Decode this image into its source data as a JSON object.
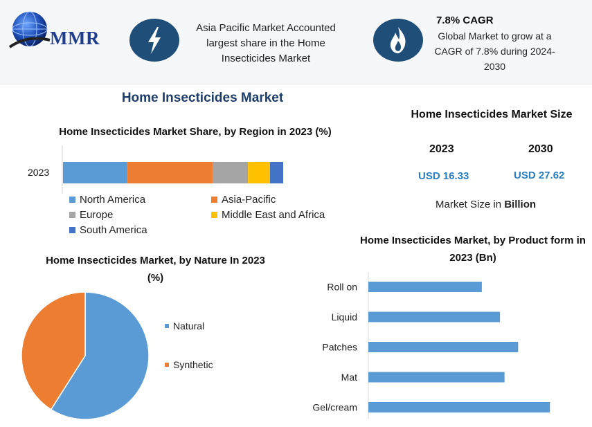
{
  "brand": {
    "logo_text": "MMR"
  },
  "header": {
    "highlight1_text": "Asia Pacific Market Accounted largest share in the Home Insecticides Market",
    "cagr_title": "7.8% CAGR",
    "cagr_text": "Global Market to grow at a CAGR of 7.8% during 2024-2030"
  },
  "main_title": "Home Insecticides Market",
  "market_size": {
    "title": "Home Insecticides Market Size",
    "year1": "2023",
    "year2": "2030",
    "value1": "USD 16.33",
    "value2": "USD 27.62",
    "note_prefix": "Market Size in ",
    "note_bold": "Billion"
  },
  "chart_data": [
    {
      "type": "bar",
      "orientation": "horizontal-stacked",
      "title": "Home Insecticides Market Share, by Region in 2023 (%)",
      "categories": [
        "2023"
      ],
      "series": [
        {
          "name": "North America",
          "values": [
            29
          ],
          "color": "#5b9bd5"
        },
        {
          "name": "Asia-Pacific",
          "values": [
            39
          ],
          "color": "#ed7d31"
        },
        {
          "name": "Europe",
          "values": [
            16
          ],
          "color": "#a5a5a5"
        },
        {
          "name": "Middle East and Africa",
          "values": [
            10
          ],
          "color": "#ffc000"
        },
        {
          "name": "South America",
          "values": [
            6
          ],
          "color": "#4472c4"
        }
      ],
      "legend_position": "bottom"
    },
    {
      "type": "pie",
      "title": "Home Insecticides Market, by Nature In 2023 (%)",
      "labels": [
        "Natural",
        "Synthetic"
      ],
      "values": [
        59,
        41
      ],
      "colors": [
        "#5b9bd5",
        "#ed7d31"
      ],
      "legend_position": "right"
    },
    {
      "type": "bar",
      "orientation": "horizontal",
      "title": "Home Insecticides Market, by Product form in 2023 (Bn)",
      "categories": [
        "Roll on",
        "Liquid",
        "Patches",
        "Mat",
        "Gel/cream"
      ],
      "values": [
        2.5,
        2.9,
        3.3,
        3.0,
        4.0
      ],
      "xlim": [
        0,
        4.5
      ],
      "color": "#5b9bd5",
      "grid": false
    }
  ]
}
